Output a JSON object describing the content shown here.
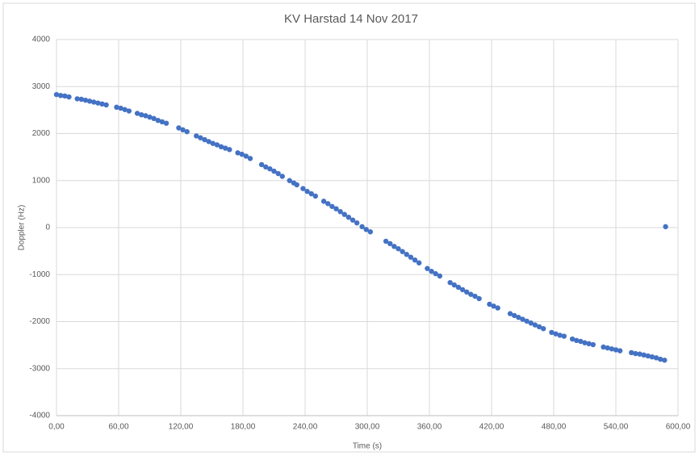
{
  "chart_data": {
    "type": "scatter",
    "title": "KV Harstad 14 Nov 2017",
    "x_label": "Time (s)",
    "y_label": "Doppler (Hz)",
    "color": "#4472c4",
    "grid": true,
    "xlim": [
      0,
      600
    ],
    "xticks": [
      {
        "value": 0,
        "label": "0,00"
      },
      {
        "value": 60,
        "label": "60,00"
      },
      {
        "value": 120,
        "label": "120,00"
      },
      {
        "value": 180,
        "label": "180,00"
      },
      {
        "value": 240,
        "label": "240,00"
      },
      {
        "value": 300,
        "label": "300,00"
      },
      {
        "value": 360,
        "label": "360,00"
      },
      {
        "value": 420,
        "label": "420,00"
      },
      {
        "value": 480,
        "label": "480,00"
      },
      {
        "value": 540,
        "label": "540,00"
      },
      {
        "value": 600,
        "label": "600,00"
      }
    ],
    "ylim": [
      -4000,
      4000
    ],
    "yticks": [
      -4000,
      -3000,
      -2000,
      -1000,
      0,
      1000,
      2000,
      3000,
      4000
    ],
    "x": [
      0,
      4,
      8,
      12,
      20,
      24,
      28,
      32,
      36,
      40,
      44,
      48,
      58,
      62,
      66,
      70,
      78,
      82,
      86,
      90,
      94,
      98,
      102,
      106,
      118,
      122,
      126,
      135,
      139,
      143,
      147,
      151,
      155,
      159,
      163,
      167,
      175,
      179,
      183,
      187,
      198,
      202,
      206,
      210,
      214,
      218,
      225,
      229,
      232,
      238,
      242,
      246,
      250,
      258,
      262,
      266,
      270,
      274,
      278,
      282,
      286,
      290,
      295,
      299,
      303,
      318,
      322,
      326,
      330,
      334,
      338,
      342,
      346,
      350,
      358,
      362,
      366,
      370,
      380,
      384,
      388,
      392,
      396,
      400,
      404,
      408,
      418,
      422,
      426,
      438,
      442,
      446,
      450,
      454,
      458,
      462,
      466,
      470,
      478,
      482,
      486,
      490,
      498,
      502,
      506,
      510,
      514,
      518,
      528,
      532,
      536,
      540,
      544,
      555,
      559,
      563,
      567,
      571,
      575,
      579,
      583,
      587,
      588
    ],
    "values": [
      2830,
      2810,
      2800,
      2780,
      2740,
      2730,
      2710,
      2690,
      2670,
      2650,
      2630,
      2610,
      2560,
      2540,
      2510,
      2480,
      2430,
      2400,
      2380,
      2350,
      2320,
      2280,
      2250,
      2220,
      2120,
      2080,
      2040,
      1950,
      1910,
      1870,
      1830,
      1790,
      1760,
      1720,
      1690,
      1660,
      1590,
      1560,
      1520,
      1470,
      1340,
      1290,
      1250,
      1200,
      1150,
      1090,
      1000,
      950,
      910,
      830,
      770,
      720,
      670,
      560,
      510,
      450,
      400,
      340,
      280,
      220,
      160,
      100,
      20,
      -40,
      -90,
      -290,
      -340,
      -400,
      -450,
      -510,
      -570,
      -630,
      -690,
      -750,
      -870,
      -930,
      -980,
      -1030,
      -1170,
      -1220,
      -1270,
      -1320,
      -1370,
      -1420,
      -1460,
      -1510,
      -1630,
      -1670,
      -1710,
      -1830,
      -1870,
      -1910,
      -1950,
      -1990,
      -2030,
      -2070,
      -2110,
      -2150,
      -2230,
      -2260,
      -2290,
      -2310,
      -2370,
      -2400,
      -2420,
      -2450,
      -2470,
      -2490,
      -2540,
      -2560,
      -2580,
      -2600,
      -2620,
      -2660,
      -2680,
      -2690,
      -2710,
      -2730,
      -2750,
      -2770,
      -2800,
      -2820,
      20
    ]
  }
}
